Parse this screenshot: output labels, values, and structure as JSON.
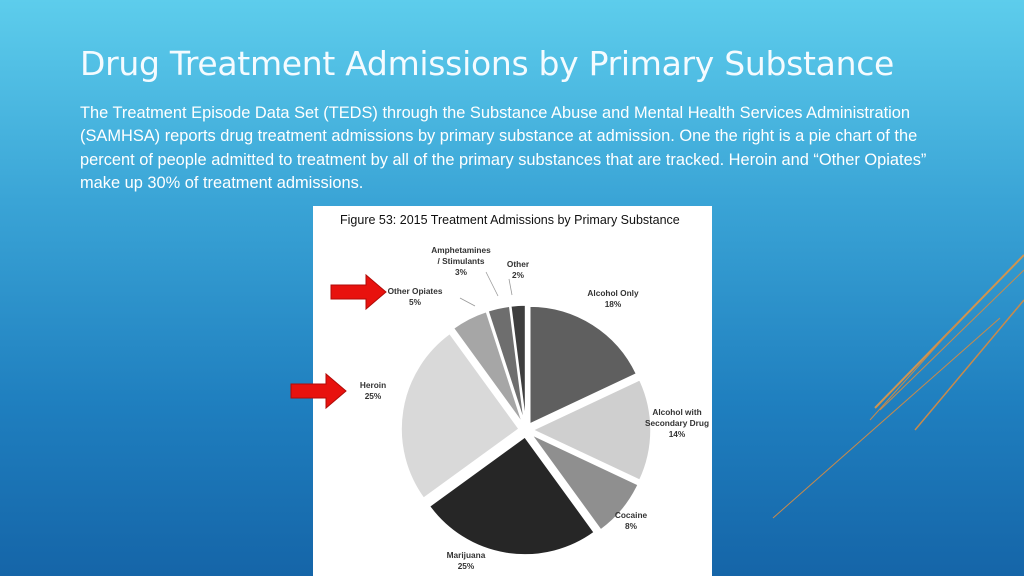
{
  "slide": {
    "title": "Drug Treatment Admissions by Primary Substance",
    "body": "The Treatment Episode Data Set (TEDS) through the Substance Abuse and Mental Health Services Administration (SAMHSA) reports drug treatment admissions by primary substance at admission. One the right is a pie chart of the percent of people admitted to treatment by all of the primary substances that are tracked. Heroin and “Other Opiates” make up 30% of treatment admissions."
  },
  "colors": {
    "background_top": "#5dcdec",
    "background_bottom": "#1565a8",
    "arrow": "#e8120e",
    "deco_line": "#c98a4a"
  },
  "chart_data": {
    "type": "pie",
    "title": "Figure 53: 2015 Treatment Admissions by Primary Substance",
    "unit": "%",
    "slices": [
      {
        "name": "Alcohol Only",
        "value": 18,
        "label": "18%",
        "color": "#5f5f5f"
      },
      {
        "name": "Alcohol with Secondary Drug",
        "value": 14,
        "label": "14%",
        "color": "#cfcfcf"
      },
      {
        "name": "Cocaine",
        "value": 8,
        "label": "8%",
        "color": "#8f8f8f"
      },
      {
        "name": "Marijuana",
        "value": 25,
        "label": "25%",
        "color": "#262626"
      },
      {
        "name": "Heroin",
        "value": 25,
        "label": "25%",
        "color": "#d9d9d9"
      },
      {
        "name": "Other Opiates",
        "value": 5,
        "label": "5%",
        "color": "#a6a6a6"
      },
      {
        "name": "Amphetamines / Stimulants",
        "value": 3,
        "label": "3%",
        "color": "#6e6e6e"
      },
      {
        "name": "Other",
        "value": 2,
        "label": "2%",
        "color": "#3e3e3e"
      }
    ],
    "highlighted": [
      "Other Opiates",
      "Heroin"
    ]
  }
}
